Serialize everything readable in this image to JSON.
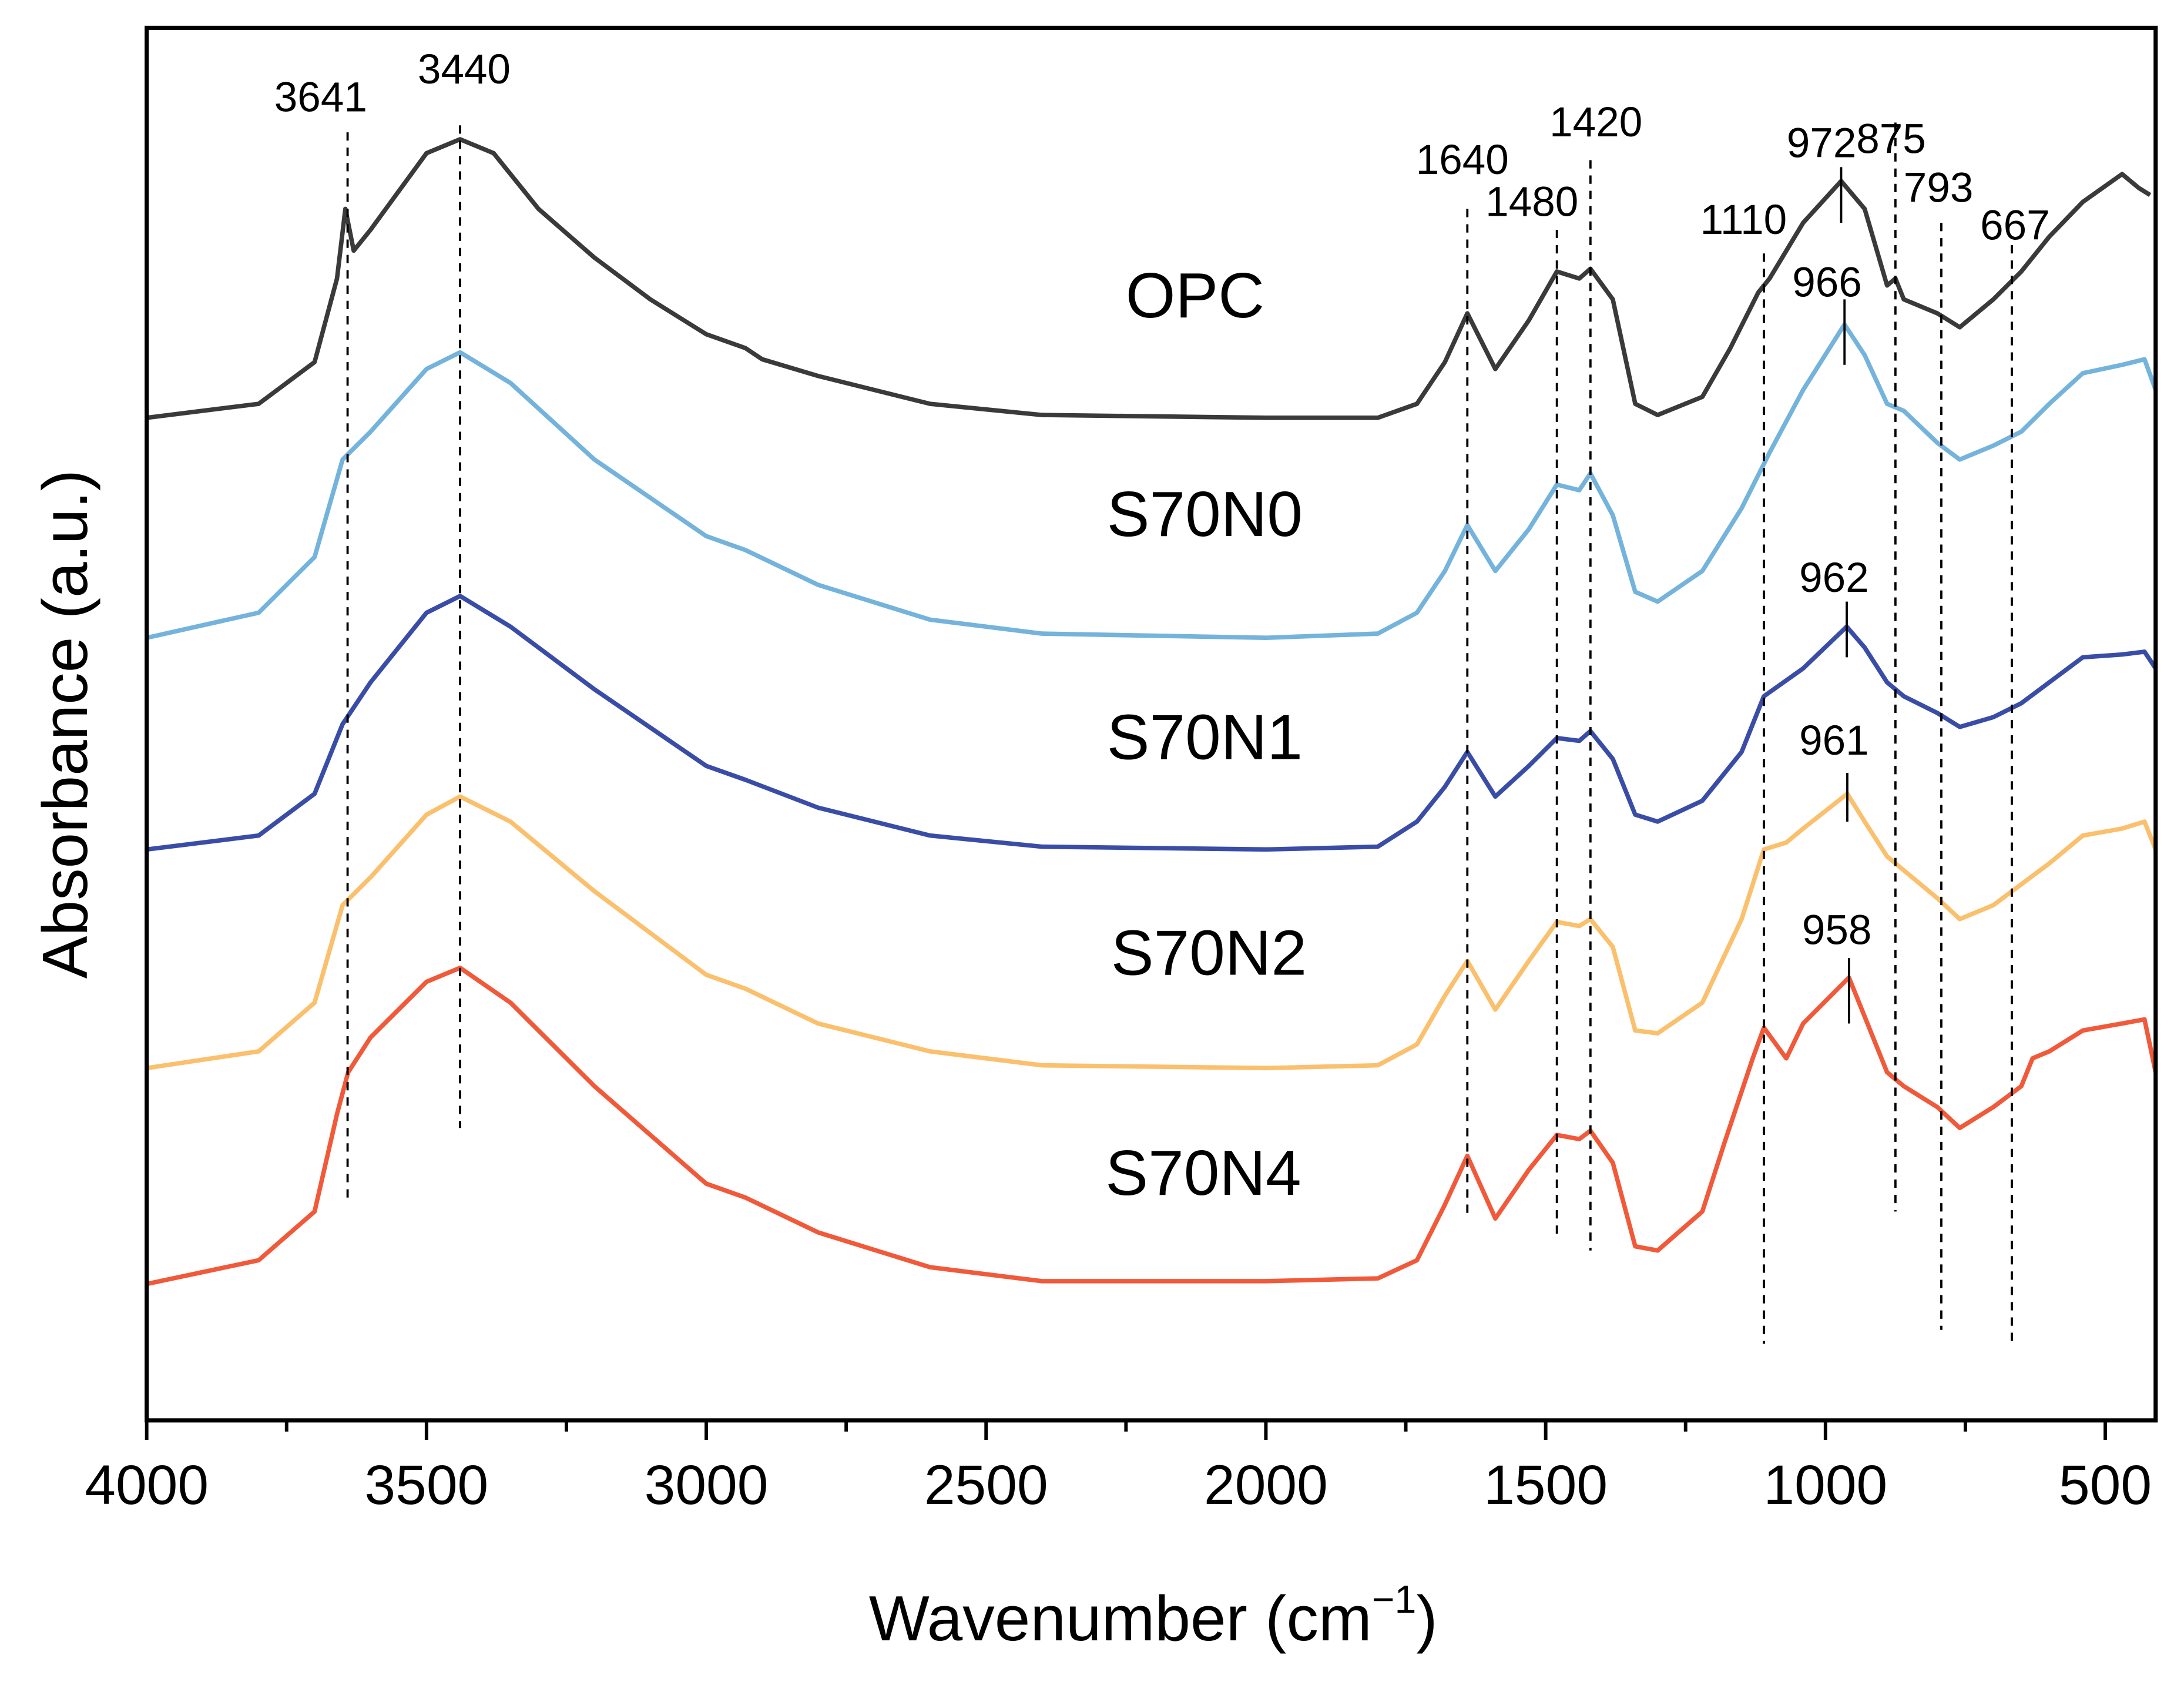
{
  "chart_data": {
    "type": "line",
    "title": "",
    "xlabel": "Wavenumber (cm",
    "xlabel_sup": "−1",
    "xlabel_close": ")",
    "ylabel": "Absorbance (a.u.)",
    "xlim": [
      4000,
      410
    ],
    "ylim": [
      0,
      1000
    ],
    "x_reversed": true,
    "grid": false,
    "xticks": [
      4000,
      3500,
      3000,
      2500,
      2000,
      1500,
      1000,
      500
    ],
    "xtick_labels": [
      "4000",
      "3500",
      "3000",
      "2500",
      "2000",
      "1500",
      "1000",
      "500"
    ],
    "series": [
      {
        "name": "OPC",
        "color": "#3a3a3a",
        "points": [
          [
            4000,
            720
          ],
          [
            3800,
            730
          ],
          [
            3700,
            760
          ],
          [
            3660,
            820
          ],
          [
            3645,
            870
          ],
          [
            3630,
            840
          ],
          [
            3600,
            855
          ],
          [
            3500,
            910
          ],
          [
            3440,
            920
          ],
          [
            3380,
            910
          ],
          [
            3300,
            870
          ],
          [
            3200,
            835
          ],
          [
            3100,
            805
          ],
          [
            3000,
            780
          ],
          [
            2930,
            770
          ],
          [
            2900,
            762
          ],
          [
            2800,
            750
          ],
          [
            2600,
            730
          ],
          [
            2400,
            722
          ],
          [
            2000,
            720
          ],
          [
            1800,
            720
          ],
          [
            1730,
            730
          ],
          [
            1680,
            760
          ],
          [
            1640,
            795
          ],
          [
            1590,
            755
          ],
          [
            1530,
            790
          ],
          [
            1480,
            825
          ],
          [
            1440,
            820
          ],
          [
            1420,
            827
          ],
          [
            1380,
            805
          ],
          [
            1340,
            730
          ],
          [
            1300,
            722
          ],
          [
            1220,
            735
          ],
          [
            1170,
            770
          ],
          [
            1120,
            810
          ],
          [
            1100,
            820
          ],
          [
            1040,
            860
          ],
          [
            972,
            890
          ],
          [
            930,
            870
          ],
          [
            890,
            815
          ],
          [
            875,
            820
          ],
          [
            860,
            805
          ],
          [
            800,
            795
          ],
          [
            760,
            785
          ],
          [
            700,
            805
          ],
          [
            650,
            825
          ],
          [
            600,
            850
          ],
          [
            540,
            875
          ],
          [
            470,
            895
          ],
          [
            440,
            885
          ],
          [
            420,
            880
          ]
        ]
      },
      {
        "name": "S70N0",
        "color": "#74b3db",
        "points": [
          [
            4000,
            562
          ],
          [
            3800,
            580
          ],
          [
            3700,
            620
          ],
          [
            3650,
            690
          ],
          [
            3600,
            710
          ],
          [
            3500,
            755
          ],
          [
            3440,
            767
          ],
          [
            3350,
            745
          ],
          [
            3200,
            690
          ],
          [
            3000,
            635
          ],
          [
            2930,
            625
          ],
          [
            2800,
            600
          ],
          [
            2600,
            575
          ],
          [
            2400,
            565
          ],
          [
            2000,
            562
          ],
          [
            1800,
            565
          ],
          [
            1730,
            580
          ],
          [
            1680,
            610
          ],
          [
            1640,
            643
          ],
          [
            1590,
            610
          ],
          [
            1530,
            640
          ],
          [
            1480,
            672
          ],
          [
            1440,
            668
          ],
          [
            1420,
            680
          ],
          [
            1380,
            650
          ],
          [
            1340,
            595
          ],
          [
            1300,
            588
          ],
          [
            1220,
            610
          ],
          [
            1150,
            655
          ],
          [
            1100,
            695
          ],
          [
            1040,
            740
          ],
          [
            966,
            787
          ],
          [
            930,
            765
          ],
          [
            890,
            730
          ],
          [
            860,
            725
          ],
          [
            800,
            702
          ],
          [
            760,
            690
          ],
          [
            700,
            700
          ],
          [
            650,
            710
          ],
          [
            600,
            730
          ],
          [
            540,
            752
          ],
          [
            470,
            758
          ],
          [
            430,
            762
          ],
          [
            410,
            740
          ]
        ]
      },
      {
        "name": "S70N1",
        "color": "#3a4da6",
        "points": [
          [
            4000,
            410
          ],
          [
            3800,
            420
          ],
          [
            3700,
            450
          ],
          [
            3650,
            500
          ],
          [
            3600,
            530
          ],
          [
            3500,
            580
          ],
          [
            3440,
            592
          ],
          [
            3350,
            570
          ],
          [
            3200,
            525
          ],
          [
            3000,
            470
          ],
          [
            2930,
            460
          ],
          [
            2800,
            440
          ],
          [
            2600,
            420
          ],
          [
            2400,
            412
          ],
          [
            2000,
            410
          ],
          [
            1800,
            412
          ],
          [
            1730,
            430
          ],
          [
            1680,
            455
          ],
          [
            1640,
            480
          ],
          [
            1590,
            448
          ],
          [
            1530,
            470
          ],
          [
            1480,
            490
          ],
          [
            1440,
            488
          ],
          [
            1420,
            495
          ],
          [
            1380,
            475
          ],
          [
            1340,
            435
          ],
          [
            1300,
            430
          ],
          [
            1220,
            445
          ],
          [
            1150,
            480
          ],
          [
            1110,
            520
          ],
          [
            1040,
            540
          ],
          [
            962,
            570
          ],
          [
            930,
            555
          ],
          [
            890,
            530
          ],
          [
            860,
            520
          ],
          [
            800,
            508
          ],
          [
            760,
            498
          ],
          [
            700,
            505
          ],
          [
            650,
            515
          ],
          [
            600,
            530
          ],
          [
            540,
            548
          ],
          [
            470,
            550
          ],
          [
            430,
            552
          ],
          [
            410,
            540
          ]
        ]
      },
      {
        "name": "S70N2",
        "color": "#fbc06d",
        "points": [
          [
            4000,
            253
          ],
          [
            3800,
            265
          ],
          [
            3700,
            300
          ],
          [
            3650,
            370
          ],
          [
            3600,
            390
          ],
          [
            3500,
            435
          ],
          [
            3440,
            448
          ],
          [
            3350,
            430
          ],
          [
            3200,
            380
          ],
          [
            3000,
            320
          ],
          [
            2930,
            310
          ],
          [
            2800,
            285
          ],
          [
            2600,
            265
          ],
          [
            2400,
            255
          ],
          [
            2000,
            253
          ],
          [
            1800,
            255
          ],
          [
            1730,
            270
          ],
          [
            1680,
            305
          ],
          [
            1640,
            330
          ],
          [
            1590,
            295
          ],
          [
            1530,
            330
          ],
          [
            1480,
            358
          ],
          [
            1440,
            355
          ],
          [
            1420,
            360
          ],
          [
            1380,
            340
          ],
          [
            1340,
            280
          ],
          [
            1300,
            278
          ],
          [
            1220,
            300
          ],
          [
            1150,
            360
          ],
          [
            1110,
            410
          ],
          [
            1070,
            415
          ],
          [
            1040,
            425
          ],
          [
            961,
            450
          ],
          [
            930,
            430
          ],
          [
            890,
            405
          ],
          [
            860,
            395
          ],
          [
            800,
            375
          ],
          [
            760,
            360
          ],
          [
            700,
            370
          ],
          [
            650,
            385
          ],
          [
            600,
            400
          ],
          [
            540,
            420
          ],
          [
            470,
            425
          ],
          [
            430,
            430
          ],
          [
            410,
            410
          ]
        ]
      },
      {
        "name": "S70N4",
        "color": "#f05a3a",
        "points": [
          [
            4000,
            98
          ],
          [
            3800,
            115
          ],
          [
            3700,
            150
          ],
          [
            3660,
            220
          ],
          [
            3640,
            250
          ],
          [
            3600,
            275
          ],
          [
            3500,
            315
          ],
          [
            3440,
            325
          ],
          [
            3350,
            300
          ],
          [
            3200,
            240
          ],
          [
            3000,
            170
          ],
          [
            2930,
            160
          ],
          [
            2800,
            135
          ],
          [
            2600,
            110
          ],
          [
            2400,
            100
          ],
          [
            2000,
            100
          ],
          [
            1800,
            102
          ],
          [
            1730,
            115
          ],
          [
            1680,
            155
          ],
          [
            1640,
            190
          ],
          [
            1590,
            145
          ],
          [
            1530,
            180
          ],
          [
            1480,
            205
          ],
          [
            1440,
            202
          ],
          [
            1420,
            208
          ],
          [
            1380,
            185
          ],
          [
            1340,
            125
          ],
          [
            1300,
            122
          ],
          [
            1220,
            150
          ],
          [
            1180,
            200
          ],
          [
            1130,
            260
          ],
          [
            1110,
            282
          ],
          [
            1070,
            260
          ],
          [
            1040,
            285
          ],
          [
            958,
            318
          ],
          [
            930,
            290
          ],
          [
            890,
            250
          ],
          [
            860,
            240
          ],
          [
            800,
            225
          ],
          [
            760,
            210
          ],
          [
            700,
            225
          ],
          [
            650,
            240
          ],
          [
            630,
            260
          ],
          [
            600,
            265
          ],
          [
            540,
            280
          ],
          [
            470,
            285
          ],
          [
            430,
            288
          ],
          [
            410,
            250
          ]
        ]
      }
    ],
    "annotations": [
      {
        "label": "3641",
        "wavenumber": 3641,
        "style": "dashed"
      },
      {
        "label": "3440",
        "wavenumber": 3440,
        "style": "dashed"
      },
      {
        "label": "1640",
        "wavenumber": 1640,
        "style": "dashed"
      },
      {
        "label": "1480",
        "wavenumber": 1480,
        "style": "dashed"
      },
      {
        "label": "1420",
        "wavenumber": 1420,
        "style": "dashed"
      },
      {
        "label": "1110",
        "wavenumber": 1110,
        "style": "dashed"
      },
      {
        "label": "972",
        "wavenumber": 972,
        "style": "solid"
      },
      {
        "label": "875",
        "wavenumber": 875,
        "style": "dashed"
      },
      {
        "label": "793",
        "wavenumber": 793,
        "style": "dashed"
      },
      {
        "label": "667",
        "wavenumber": 667,
        "style": "dashed"
      },
      {
        "label": "966",
        "wavenumber": 966,
        "style": "solid"
      },
      {
        "label": "962",
        "wavenumber": 962,
        "style": "solid"
      },
      {
        "label": "961",
        "wavenumber": 961,
        "style": "solid"
      },
      {
        "label": "958",
        "wavenumber": 958,
        "style": "solid"
      }
    ]
  }
}
